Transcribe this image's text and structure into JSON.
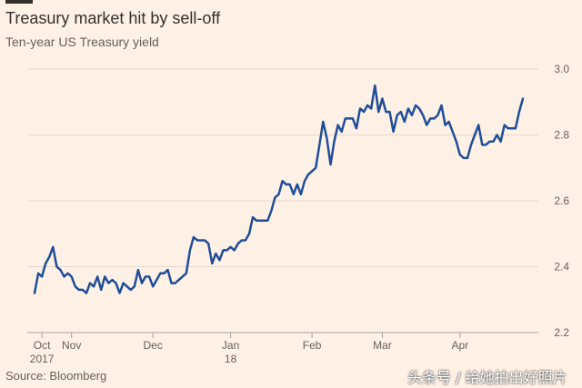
{
  "header": {
    "title": "Treasury market hit by sell-off",
    "subtitle": "Ten-year US Treasury yield"
  },
  "footer": {
    "source": "Source: Bloomberg",
    "watermark": "头条号 / 给她拍出好照片"
  },
  "chart_data": {
    "type": "line",
    "title": "Treasury market hit by sell-off",
    "subtitle": "Ten-year US Treasury yield",
    "xlabel": "",
    "ylabel": "",
    "ylim": [
      2.2,
      3.0
    ],
    "yticks": [
      "3.0",
      "2.8",
      "2.6",
      "2.4",
      "2.2"
    ],
    "ytick_values": [
      3.0,
      2.8,
      2.6,
      2.4,
      2.2
    ],
    "xticks": [
      {
        "label": "Oct",
        "sublabel": "2017",
        "index": 2
      },
      {
        "label": "Nov",
        "sublabel": "",
        "index": 10
      },
      {
        "label": "Dec",
        "sublabel": "",
        "index": 32
      },
      {
        "label": "Jan",
        "sublabel": "18",
        "index": 53
      },
      {
        "label": "Feb",
        "sublabel": "",
        "index": 75
      },
      {
        "label": "Mar",
        "sublabel": "",
        "index": 94
      },
      {
        "label": "Apr",
        "sublabel": "",
        "index": 115
      }
    ],
    "grid": true,
    "series": [
      {
        "name": "Ten-year US Treasury yield",
        "color": "#1f4e99",
        "values": [
          2.32,
          2.38,
          2.37,
          2.41,
          2.43,
          2.46,
          2.4,
          2.39,
          2.37,
          2.38,
          2.37,
          2.34,
          2.33,
          2.33,
          2.32,
          2.35,
          2.34,
          2.37,
          2.33,
          2.37,
          2.35,
          2.36,
          2.35,
          2.32,
          2.35,
          2.34,
          2.33,
          2.34,
          2.39,
          2.35,
          2.37,
          2.37,
          2.34,
          2.36,
          2.38,
          2.38,
          2.39,
          2.35,
          2.35,
          2.36,
          2.37,
          2.38,
          2.45,
          2.49,
          2.48,
          2.48,
          2.48,
          2.47,
          2.41,
          2.44,
          2.42,
          2.45,
          2.45,
          2.46,
          2.45,
          2.47,
          2.48,
          2.48,
          2.5,
          2.55,
          2.54,
          2.54,
          2.54,
          2.54,
          2.57,
          2.61,
          2.62,
          2.66,
          2.65,
          2.65,
          2.62,
          2.65,
          2.62,
          2.66,
          2.68,
          2.69,
          2.7,
          2.77,
          2.84,
          2.79,
          2.71,
          2.78,
          2.83,
          2.81,
          2.85,
          2.85,
          2.85,
          2.82,
          2.88,
          2.87,
          2.89,
          2.88,
          2.95,
          2.87,
          2.91,
          2.87,
          2.87,
          2.81,
          2.86,
          2.87,
          2.84,
          2.88,
          2.86,
          2.89,
          2.88,
          2.86,
          2.83,
          2.85,
          2.85,
          2.86,
          2.89,
          2.83,
          2.84,
          2.81,
          2.78,
          2.74,
          2.73,
          2.73,
          2.77,
          2.8,
          2.83,
          2.77,
          2.77,
          2.78,
          2.78,
          2.8,
          2.78,
          2.83,
          2.82,
          2.82,
          2.82,
          2.87,
          2.91
        ]
      }
    ]
  }
}
